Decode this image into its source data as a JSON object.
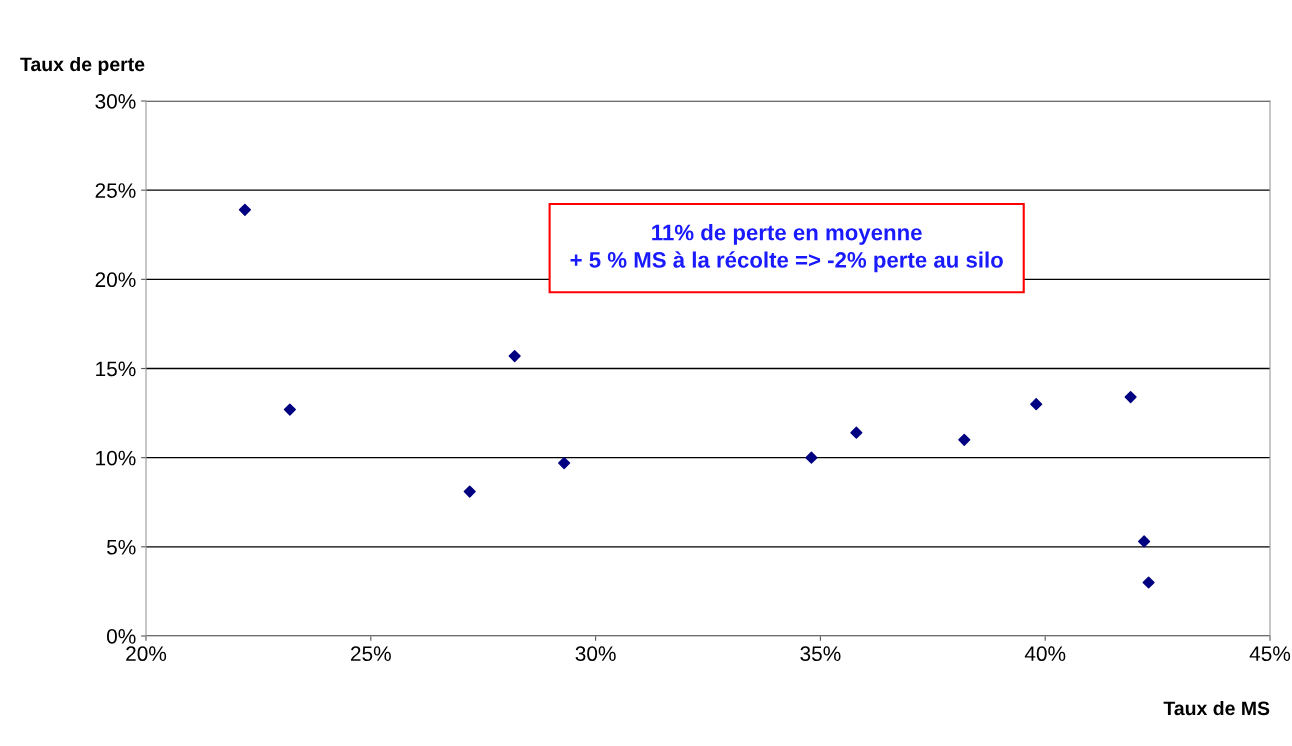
{
  "chart_data": {
    "type": "scatter",
    "xlabel": "Taux de MS",
    "ylabel": "Taux de perte",
    "x": [
      22.2,
      23.2,
      27.2,
      28.2,
      29.3,
      34.8,
      35.8,
      38.2,
      39.8,
      41.9,
      42.2,
      42.3
    ],
    "series": [
      {
        "color": "#000080",
        "values": [
          23.9,
          12.7,
          8.1,
          15.7,
          9.7,
          10.0,
          11.4,
          11.0,
          13.0,
          13.4,
          5.3,
          3.0
        ]
      }
    ],
    "marker": "diamond",
    "grid": "y",
    "xlim": [
      20,
      45
    ],
    "xticks": [
      {
        "value": 20,
        "label": "20%"
      },
      {
        "value": 25,
        "label": "25%"
      },
      {
        "value": 30,
        "label": "30%"
      },
      {
        "value": 35,
        "label": "35%"
      },
      {
        "value": 40,
        "label": "40%"
      },
      {
        "value": 45,
        "label": "45%"
      }
    ],
    "ylim": [
      0,
      30
    ],
    "yticks": [
      {
        "value": 0,
        "label": "0%"
      },
      {
        "value": 5,
        "label": "5%"
      },
      {
        "value": 10,
        "label": "10%"
      },
      {
        "value": 15,
        "label": "15%"
      },
      {
        "value": 20,
        "label": "20%"
      },
      {
        "value": 25,
        "label": "25%"
      },
      {
        "value": 30,
        "label": "30%"
      }
    ],
    "annotations": [
      "11% de perte en moyenne\n+ 5 % MS à la récolte => -2% perte au silo"
    ]
  }
}
